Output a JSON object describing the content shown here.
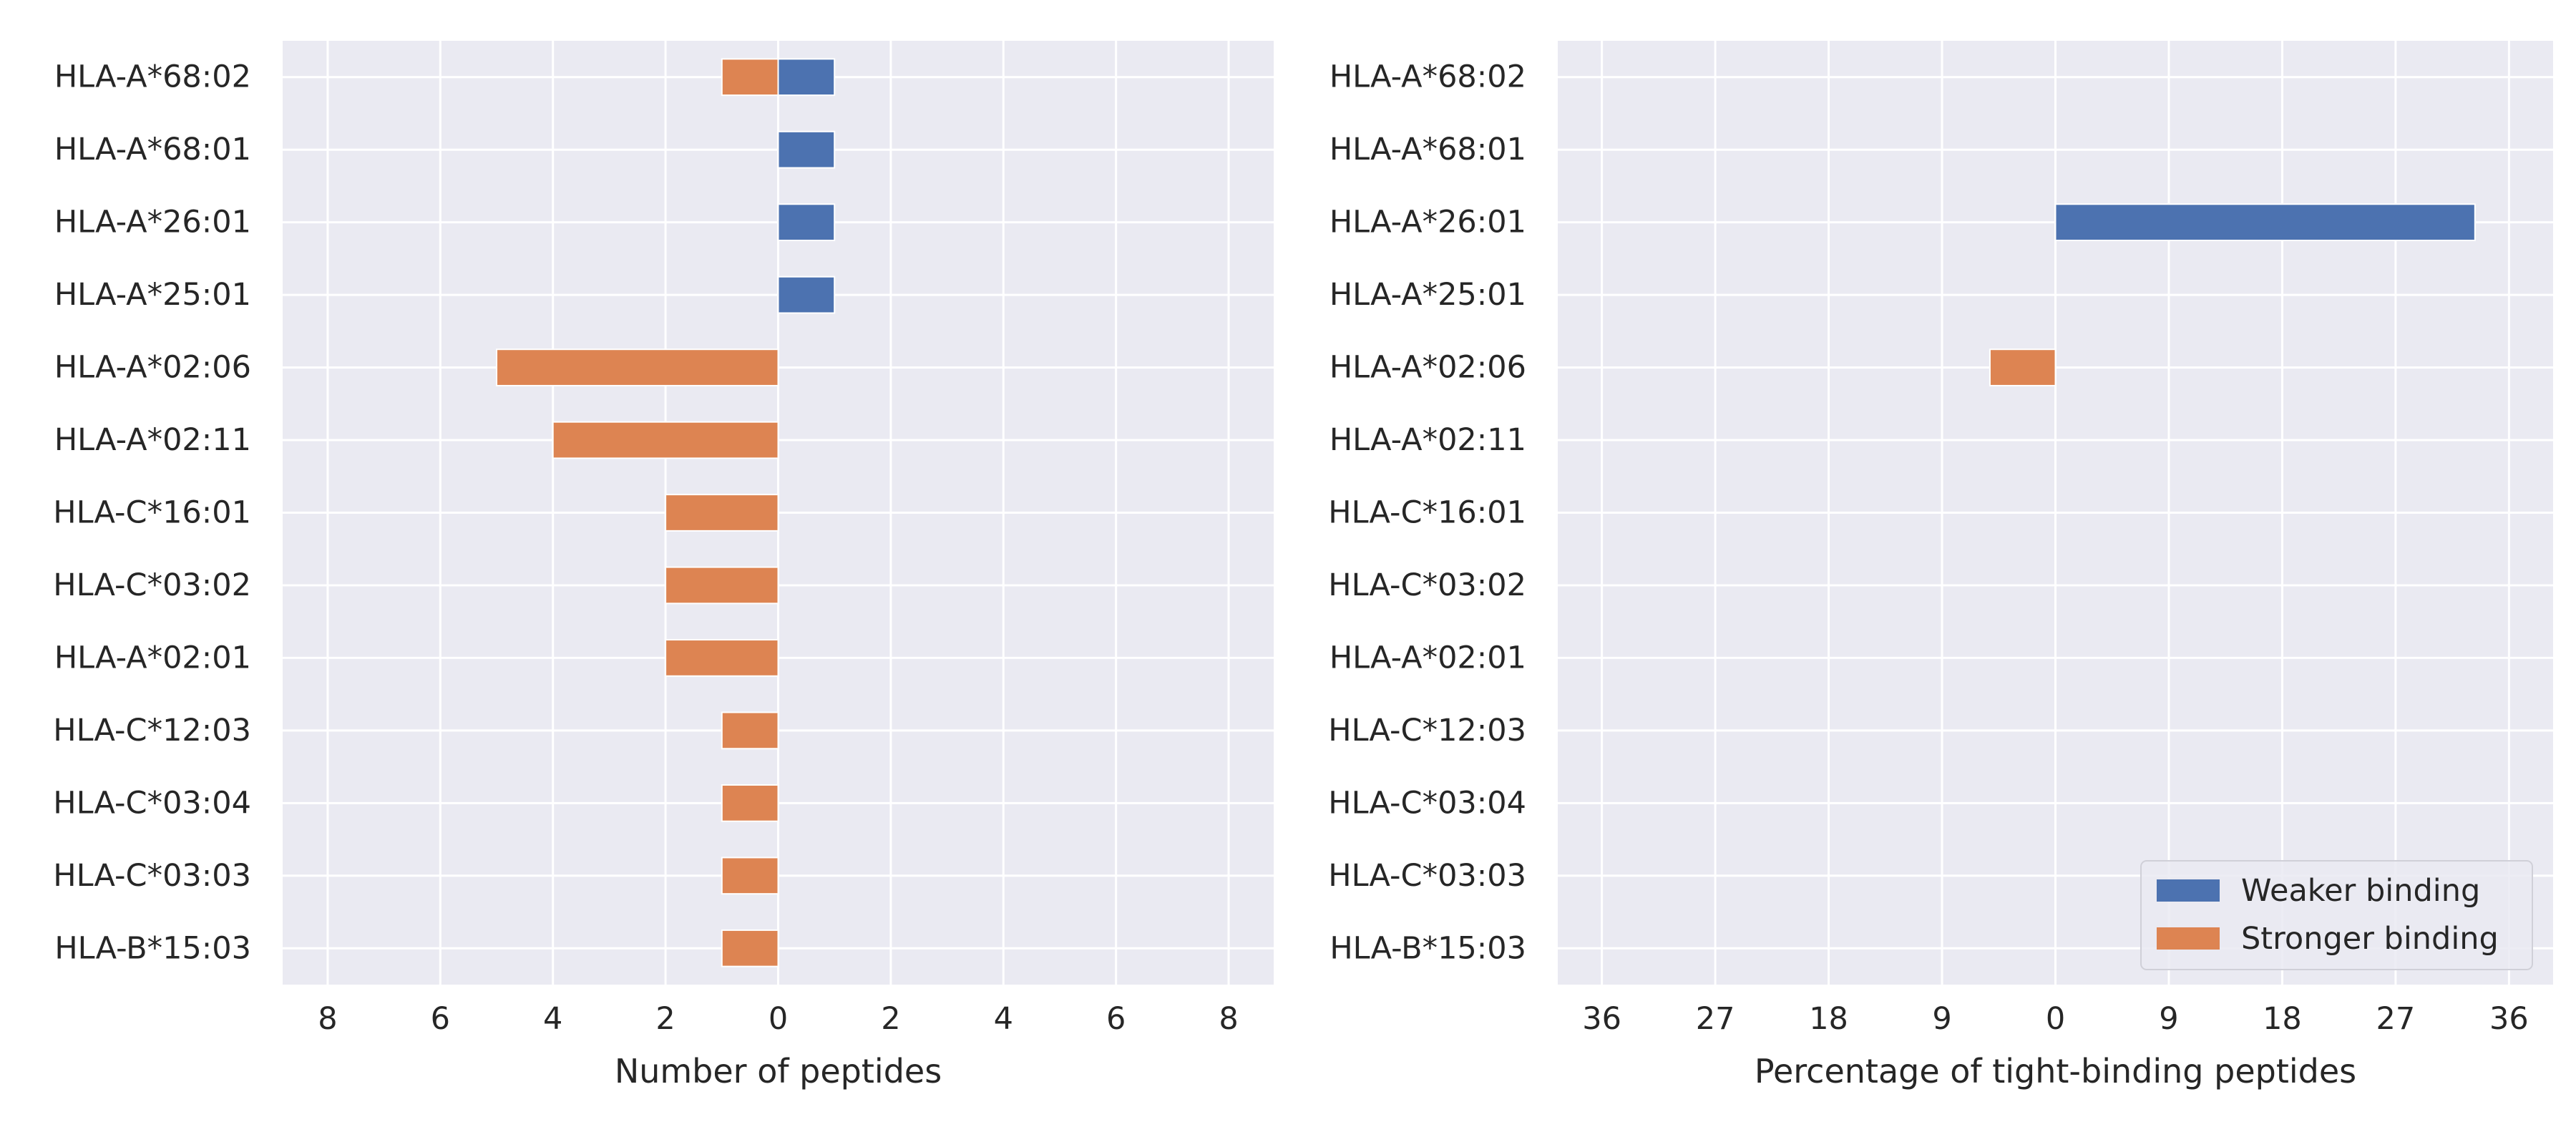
{
  "colors": {
    "background": "#eaeaf2",
    "grid": "#ffffff",
    "weaker": "#4c72b0",
    "stronger": "#dd8452",
    "text": "#262626"
  },
  "chart_data": [
    {
      "type": "bar",
      "orientation": "horizontal-diverging",
      "title": "",
      "xlabel": "Number of peptides",
      "ylabel": "",
      "xlim": [
        -8.8,
        8.8
      ],
      "xticks": [
        -8,
        -6,
        -4,
        -2,
        0,
        2,
        4,
        6,
        8
      ],
      "xtick_labels": [
        "8",
        "6",
        "4",
        "2",
        "0",
        "2",
        "4",
        "6",
        "8"
      ],
      "grid": true,
      "categories": [
        "HLA-A*68:02",
        "HLA-A*68:01",
        "HLA-A*26:01",
        "HLA-A*25:01",
        "HLA-A*02:06",
        "HLA-A*02:11",
        "HLA-C*16:01",
        "HLA-C*03:02",
        "HLA-A*02:01",
        "HLA-C*12:03",
        "HLA-C*03:04",
        "HLA-C*03:03",
        "HLA-B*15:03"
      ],
      "series": [
        {
          "name": "Weaker binding",
          "direction": "right",
          "values": [
            1,
            1,
            1,
            1,
            0,
            0,
            0,
            0,
            0,
            0,
            0,
            0,
            0
          ]
        },
        {
          "name": "Stronger binding",
          "direction": "left",
          "values": [
            1,
            0,
            0,
            0,
            5,
            4,
            2,
            2,
            2,
            1,
            1,
            1,
            1
          ]
        }
      ]
    },
    {
      "type": "bar",
      "orientation": "horizontal-diverging",
      "title": "",
      "xlabel": "Percentage of tight-binding peptides",
      "ylabel": "",
      "xlim": [
        -39.5,
        39.5
      ],
      "xticks": [
        -36,
        -27,
        -18,
        -9,
        0,
        9,
        18,
        27,
        36
      ],
      "xtick_labels": [
        "36",
        "27",
        "18",
        "9",
        "0",
        "9",
        "18",
        "27",
        "36"
      ],
      "grid": true,
      "legend": "lower-right",
      "categories": [
        "HLA-A*68:02",
        "HLA-A*68:01",
        "HLA-A*26:01",
        "HLA-A*25:01",
        "HLA-A*02:06",
        "HLA-A*02:11",
        "HLA-C*16:01",
        "HLA-C*03:02",
        "HLA-A*02:01",
        "HLA-C*12:03",
        "HLA-C*03:04",
        "HLA-C*03:03",
        "HLA-B*15:03"
      ],
      "series": [
        {
          "name": "Weaker binding",
          "direction": "right",
          "values": [
            0,
            0,
            33.3,
            0,
            0,
            0,
            0,
            0,
            0,
            0,
            0,
            0,
            0
          ]
        },
        {
          "name": "Stronger binding",
          "direction": "left",
          "values": [
            0,
            0,
            0,
            0,
            5.2,
            0,
            0,
            0,
            0,
            0,
            0,
            0,
            0
          ]
        }
      ]
    }
  ]
}
